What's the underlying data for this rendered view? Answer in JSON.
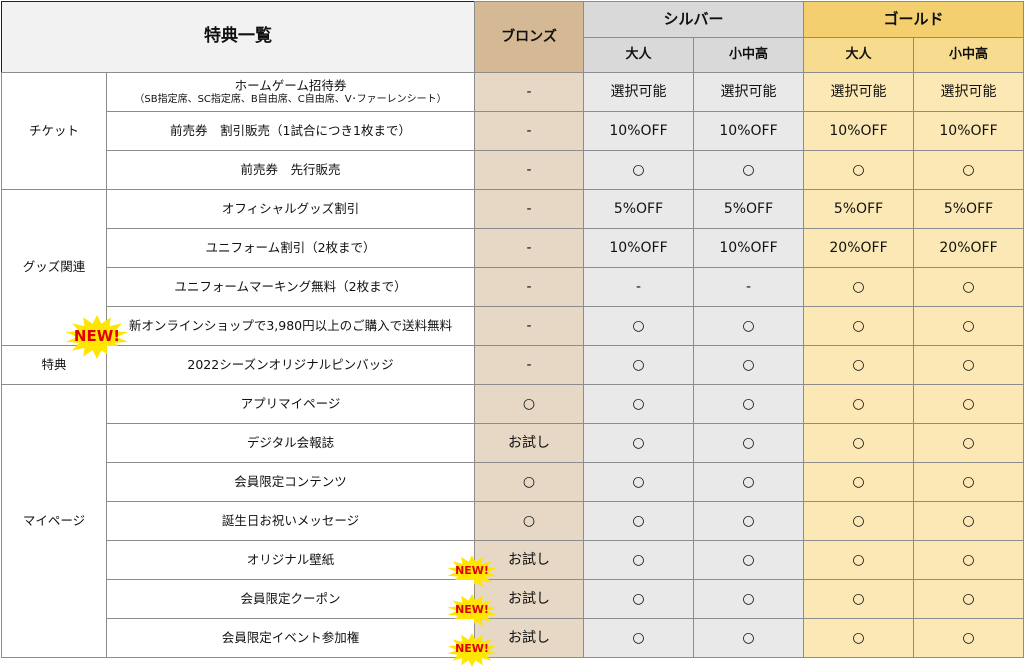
{
  "header": {
    "title": "特典一覧",
    "bronze": "ブロンズ",
    "silver": "シルバー",
    "gold": "ゴールド",
    "adult": "大人",
    "youth": "小中高"
  },
  "new_badge": "NEW!",
  "categories": {
    "ticket": "チケット",
    "goods": "グッズ関連",
    "perk": "特典",
    "mypage": "マイページ"
  },
  "rows": [
    {
      "item": "ホームゲーム招待券",
      "sub": "（SB指定席、SC指定席、B自由席、C自由席、V･ファーレンシート）",
      "bronze": "-",
      "s_adult": "選択可能",
      "s_youth": "選択可能",
      "g_adult": "選択可能",
      "g_youth": "選択可能"
    },
    {
      "item": "前売券　割引販売（1試合につき1枚まで）",
      "bronze": "-",
      "s_adult": "10%OFF",
      "s_youth": "10%OFF",
      "g_adult": "10%OFF",
      "g_youth": "10%OFF"
    },
    {
      "item": "前売券　先行販売",
      "bronze": "-",
      "s_adult": "○",
      "s_youth": "○",
      "g_adult": "○",
      "g_youth": "○"
    },
    {
      "item": "オフィシャルグッズ割引",
      "bronze": "-",
      "s_adult": "5%OFF",
      "s_youth": "5%OFF",
      "g_adult": "5%OFF",
      "g_youth": "5%OFF"
    },
    {
      "item": "ユニフォーム割引（2枚まで）",
      "bronze": "-",
      "s_adult": "10%OFF",
      "s_youth": "10%OFF",
      "g_adult": "20%OFF",
      "g_youth": "20%OFF"
    },
    {
      "item": "ユニフォームマーキング無料（2枚まで）",
      "bronze": "-",
      "s_adult": "-",
      "s_youth": "-",
      "g_adult": "○",
      "g_youth": "○"
    },
    {
      "item": "新オンラインショップで3,980円以上のご購入で送料無料",
      "bronze": "-",
      "s_adult": "○",
      "s_youth": "○",
      "g_adult": "○",
      "g_youth": "○"
    },
    {
      "item": "2022シーズンオリジナルピンバッジ",
      "bronze": "-",
      "s_adult": "○",
      "s_youth": "○",
      "g_adult": "○",
      "g_youth": "○"
    },
    {
      "item": "アプリマイページ",
      "bronze": "○",
      "s_adult": "○",
      "s_youth": "○",
      "g_adult": "○",
      "g_youth": "○"
    },
    {
      "item": "デジタル会報誌",
      "bronze": "お試し",
      "s_adult": "○",
      "s_youth": "○",
      "g_adult": "○",
      "g_youth": "○"
    },
    {
      "item": "会員限定コンテンツ",
      "bronze": "○",
      "s_adult": "○",
      "s_youth": "○",
      "g_adult": "○",
      "g_youth": "○"
    },
    {
      "item": "誕生日お祝いメッセージ",
      "bronze": "○",
      "s_adult": "○",
      "s_youth": "○",
      "g_adult": "○",
      "g_youth": "○"
    },
    {
      "item": "オリジナル壁紙",
      "bronze": "お試し",
      "s_adult": "○",
      "s_youth": "○",
      "g_adult": "○",
      "g_youth": "○"
    },
    {
      "item": "会員限定クーポン",
      "bronze": "お試し",
      "s_adult": "○",
      "s_youth": "○",
      "g_adult": "○",
      "g_youth": "○"
    },
    {
      "item": "会員限定イベント参加権",
      "bronze": "お試し",
      "s_adult": "○",
      "s_youth": "○",
      "g_adult": "○",
      "g_youth": "○"
    }
  ],
  "colors": {
    "bronze_header": "#d5b995",
    "bronze_cell": "#e6d8c5",
    "silver_header": "#d9d9d9",
    "silver_cell": "#e9e9e9",
    "gold_header": "#f3cf6f",
    "gold_cell": "#fce8b4",
    "badge_star": "#ffe600",
    "badge_text": "#e00000"
  }
}
